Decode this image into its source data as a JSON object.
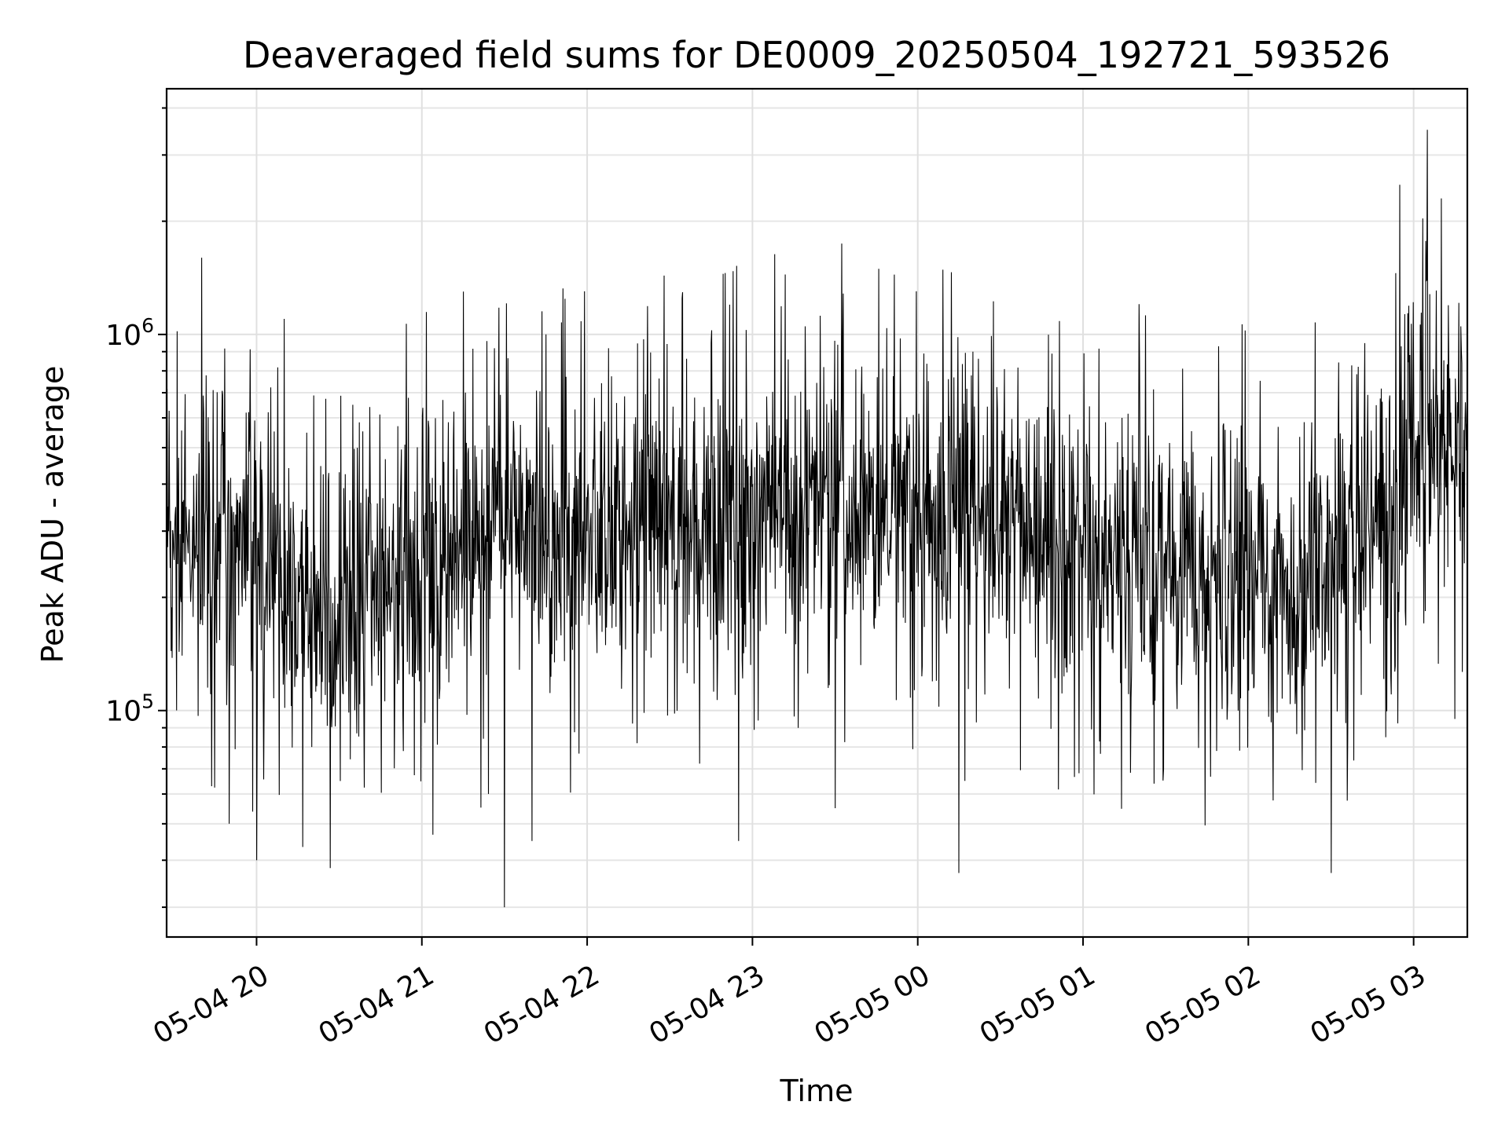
{
  "chart_data": {
    "type": "line",
    "title": "Deaveraged field sums for DE0009_20250504_192721_593526",
    "xlabel": "Time",
    "ylabel": "Peak ADU - average",
    "xscale": "time",
    "yscale": "log",
    "xlim": [
      "2025-05-04 19:27:21",
      "2025-05-05 03:19:30"
    ],
    "ylim": [
      25000,
      4500000
    ],
    "x_ticks": [
      {
        "at": "2025-05-04 20:00",
        "label": "05-04 20"
      },
      {
        "at": "2025-05-04 21:00",
        "label": "05-04 21"
      },
      {
        "at": "2025-05-04 22:00",
        "label": "05-04 22"
      },
      {
        "at": "2025-05-04 23:00",
        "label": "05-04 23"
      },
      {
        "at": "2025-05-05 00:00",
        "label": "05-05 00"
      },
      {
        "at": "2025-05-05 01:00",
        "label": "05-05 01"
      },
      {
        "at": "2025-05-05 02:00",
        "label": "05-05 02"
      },
      {
        "at": "2025-05-05 03:00",
        "label": "05-05 03"
      }
    ],
    "y_ticks": [
      {
        "value": 100000,
        "base": "10",
        "exp": "5"
      },
      {
        "value": 1000000,
        "base": "10",
        "exp": "6"
      }
    ],
    "grid": true,
    "legend": "none",
    "series": [
      {
        "color": "#000000",
        "points": [
          [
            "2025-05-04 19:28",
            300000
          ],
          [
            "2025-05-04 19:35",
            280000
          ],
          [
            "2025-05-04 19:40",
            1600000
          ],
          [
            "2025-05-04 19:45",
            250000
          ],
          [
            "2025-05-04 19:50",
            50000
          ],
          [
            "2025-05-04 19:55",
            330000
          ],
          [
            "2025-05-04 20:00",
            40000
          ],
          [
            "2025-05-04 20:05",
            180000
          ],
          [
            "2025-05-04 20:10",
            1100000
          ],
          [
            "2025-05-04 20:15",
            130000
          ],
          [
            "2025-05-04 20:20",
            80000
          ],
          [
            "2025-05-04 20:25",
            110000
          ],
          [
            "2025-05-04 20:30",
            430000
          ],
          [
            "2025-05-04 20:35",
            650000
          ],
          [
            "2025-05-04 20:45",
            330000
          ],
          [
            "2025-05-04 21:00",
            320000
          ],
          [
            "2025-05-04 21:15",
            1300000
          ],
          [
            "2025-05-04 21:25",
            320000
          ],
          [
            "2025-05-04 21:30",
            30000
          ],
          [
            "2025-05-04 21:40",
            45000
          ],
          [
            "2025-05-04 21:45",
            1000000
          ],
          [
            "2025-05-04 22:00",
            300000
          ],
          [
            "2025-05-04 22:15",
            320000
          ],
          [
            "2025-05-04 22:30",
            350000
          ],
          [
            "2025-05-04 22:45",
            950000
          ],
          [
            "2025-05-04 22:55",
            45000
          ],
          [
            "2025-05-04 23:00",
            400000
          ],
          [
            "2025-05-04 23:15",
            450000
          ],
          [
            "2025-05-04 23:30",
            1450000
          ],
          [
            "2025-05-04 23:30",
            55000
          ],
          [
            "2025-05-04 23:45",
            400000
          ],
          [
            "2025-05-05 00:00",
            380000
          ],
          [
            "2025-05-05 00:15",
            37000
          ],
          [
            "2025-05-05 00:20",
            900000
          ],
          [
            "2025-05-05 00:30",
            300000
          ],
          [
            "2025-05-05 00:45",
            260000
          ],
          [
            "2025-05-05 01:00",
            240000
          ],
          [
            "2025-05-05 01:15",
            260000
          ],
          [
            "2025-05-05 01:30",
            280000
          ],
          [
            "2025-05-05 01:45",
            240000
          ],
          [
            "2025-05-05 02:00",
            210000
          ],
          [
            "2025-05-05 02:15",
            200000
          ],
          [
            "2025-05-05 02:30",
            37000
          ],
          [
            "2025-05-05 02:40",
            180000
          ],
          [
            "2025-05-05 02:45",
            260000
          ],
          [
            "2025-05-05 02:50",
            600000
          ],
          [
            "2025-05-05 02:55",
            2500000
          ],
          [
            "2025-05-05 03:05",
            3500000
          ],
          [
            "2025-05-05 03:10",
            2300000
          ],
          [
            "2025-05-05 03:15",
            95000
          ],
          [
            "2025-05-05 03:19",
            600000
          ]
        ]
      }
    ]
  }
}
